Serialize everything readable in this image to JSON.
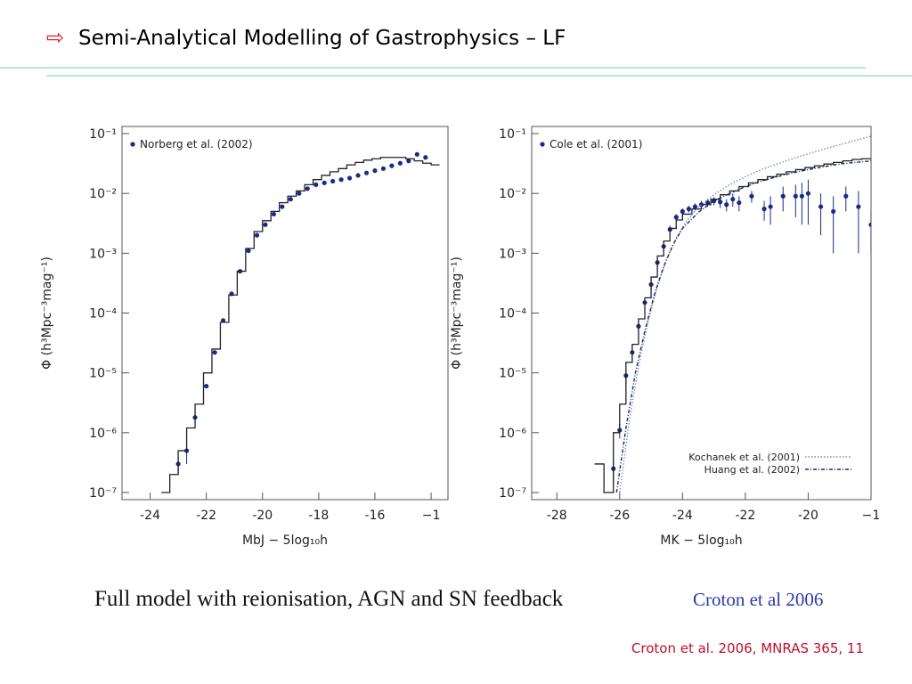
{
  "title": "Semi-Analytical Modelling of Gastrophysics – LF",
  "caption": "Full model with reionisation, AGN and SN feedback",
  "caption_ref": "Croton et al 2006",
  "footer": "Croton et al. 2006, MNRAS 365, 11",
  "chart_data": [
    {
      "type": "line",
      "ylog": true,
      "xlabel": "MbJ − 5log₁₀h",
      "ylabel": "Φ (h³Mpc⁻³mag⁻¹)",
      "xlim": [
        -25,
        -13.4
      ],
      "ylim": [
        1e-07,
        0.1
      ],
      "xticks": [
        -24,
        -22,
        -20,
        -18,
        -16,
        {
          "value": -14,
          "label": "−1"
        }
      ],
      "yticks": [
        {
          "value": 1e-07,
          "label": "10⁻⁷"
        },
        {
          "value": 1e-06,
          "label": "10⁻⁶"
        },
        {
          "value": 1e-05,
          "label": "10⁻⁵"
        },
        {
          "value": 0.0001,
          "label": "10⁻⁴"
        },
        {
          "value": 0.001,
          "label": "10⁻³"
        },
        {
          "value": 0.01,
          "label": "10⁻²"
        },
        {
          "value": 0.1,
          "label": "10⁻¹"
        }
      ],
      "series": [
        {
          "name": "Norberg et al. (2002)",
          "style": "points",
          "color": "#1a2a8a",
          "legend": "upper left",
          "x": [
            -23.0,
            -22.7,
            -22.4,
            -22.0,
            -21.7,
            -21.4,
            -21.1,
            -20.8,
            -20.5,
            -20.2,
            -19.9,
            -19.6,
            -19.3,
            -19.0,
            -18.7,
            -18.4,
            -18.1,
            -17.8,
            -17.5,
            -17.2,
            -16.9,
            -16.6,
            -16.3,
            -16.0,
            -15.7,
            -15.4,
            -15.1,
            -14.8,
            -14.5,
            -14.2
          ],
          "values": [
            3e-07,
            5e-07,
            1.8e-06,
            6e-06,
            2.2e-05,
            7.5e-05,
            0.00021,
            0.0005,
            0.0011,
            0.002,
            0.003,
            0.0045,
            0.006,
            0.008,
            0.01,
            0.012,
            0.014,
            0.015,
            0.016,
            0.017,
            0.018,
            0.02,
            0.022,
            0.024,
            0.026,
            0.029,
            0.032,
            0.035,
            0.045,
            0.04
          ],
          "errors": [
            1e-07,
            2e-07,
            4e-07,
            0,
            0,
            0,
            0,
            0,
            0,
            0,
            0,
            0,
            0,
            0,
            0,
            0,
            0,
            0,
            0,
            0,
            0,
            0,
            0,
            0,
            0,
            0,
            0,
            0,
            0,
            0
          ]
        },
        {
          "style": "step",
          "color": "#222222",
          "x": [
            -23.6,
            -23.3,
            -23.0,
            -22.7,
            -22.4,
            -22.1,
            -21.8,
            -21.5,
            -21.2,
            -20.9,
            -20.6,
            -20.3,
            -20.0,
            -19.7,
            -19.4,
            -19.1,
            -18.8,
            -18.5,
            -18.2,
            -17.9,
            -17.6,
            -17.3,
            -17.0,
            -16.7,
            -16.4,
            -16.1,
            -15.8,
            -15.5,
            -15.2,
            -14.9,
            -14.6,
            -14.3,
            -14.0
          ],
          "values": [
            1e-07,
            2e-07,
            5e-07,
            1.2e-06,
            3e-06,
            1e-05,
            2.5e-05,
            7e-05,
            0.0002,
            0.0005,
            0.0012,
            0.0023,
            0.0035,
            0.005,
            0.007,
            0.009,
            0.011,
            0.014,
            0.017,
            0.02,
            0.023,
            0.026,
            0.03,
            0.033,
            0.036,
            0.038,
            0.04,
            0.04,
            0.04,
            0.038,
            0.035,
            0.032,
            0.03
          ]
        }
      ]
    },
    {
      "type": "line",
      "ylog": true,
      "xlabel": "MK − 5log₁₀h",
      "ylabel": "Φ (h³Mpc⁻³mag⁻¹)",
      "xlim": [
        -28.8,
        -18
      ],
      "ylim": [
        1e-07,
        0.1
      ],
      "xticks": [
        -28,
        -26,
        -24,
        -22,
        -20,
        {
          "value": -18,
          "label": "−1"
        }
      ],
      "yticks": [
        {
          "value": 1e-07,
          "label": "10⁻⁷"
        },
        {
          "value": 1e-06,
          "label": "10⁻⁶"
        },
        {
          "value": 1e-05,
          "label": "10⁻⁵"
        },
        {
          "value": 0.0001,
          "label": "10⁻⁴"
        },
        {
          "value": 0.001,
          "label": "10⁻³"
        },
        {
          "value": 0.01,
          "label": "10⁻²"
        },
        {
          "value": 0.1,
          "label": "10⁻¹"
        }
      ],
      "series": [
        {
          "name": "Cole et al. (2001)",
          "style": "points",
          "color": "#1a2a8a",
          "legend": "upper left",
          "x": [
            -26.2,
            -26.0,
            -25.8,
            -25.6,
            -25.4,
            -25.2,
            -25.0,
            -24.8,
            -24.6,
            -24.4,
            -24.2,
            -24.0,
            -23.8,
            -23.6,
            -23.4,
            -23.2,
            -23.0,
            -22.8,
            -22.6,
            -22.4,
            -22.2,
            -21.8,
            -21.4,
            -21.2,
            -20.8,
            -20.4,
            -20.2,
            -20.0,
            -19.6,
            -19.2,
            -18.8,
            -18.4,
            -18.0
          ],
          "values": [
            2.5e-07,
            1.1e-06,
            9e-06,
            2.2e-05,
            6e-05,
            0.00015,
            0.0003,
            0.0007,
            0.0013,
            0.0025,
            0.004,
            0.005,
            0.0055,
            0.006,
            0.0065,
            0.007,
            0.0075,
            0.0072,
            0.0065,
            0.008,
            0.007,
            0.009,
            0.0055,
            0.006,
            0.009,
            0.009,
            0.009,
            0.01,
            0.006,
            0.005,
            0.009,
            0.006,
            0.003
          ],
          "errors": [
            1e-07,
            3e-07,
            3e-06,
            6e-06,
            1.5e-05,
            3e-05,
            6e-05,
            0.00012,
            0.0002,
            0.0004,
            0.0005,
            0.0006,
            0.0007,
            0.0008,
            0.001,
            0.001,
            0.0012,
            0.0015,
            0.0015,
            0.002,
            0.002,
            0.002,
            0.002,
            0.003,
            0.004,
            0.005,
            0.006,
            0.007,
            0.004,
            0.004,
            0.004,
            0.005,
            0.002
          ]
        },
        {
          "style": "step",
          "color": "#222222",
          "x": [
            -26.8,
            -26.5,
            -26.2,
            -26.0,
            -25.8,
            -25.6,
            -25.4,
            -25.2,
            -25.0,
            -24.8,
            -24.6,
            -24.4,
            -24.2,
            -24.0,
            -23.7,
            -23.4,
            -23.1,
            -22.8,
            -22.5,
            -22.2,
            -21.9,
            -21.6,
            -21.3,
            -21.0,
            -20.7,
            -20.4,
            -20.1,
            -19.8,
            -19.5,
            -19.2,
            -18.9,
            -18.6,
            -18.3
          ],
          "values": [
            3e-07,
            1e-07,
            1e-06,
            3e-06,
            1.5e-05,
            3e-05,
            8e-05,
            0.00018,
            0.0004,
            0.0009,
            0.0016,
            0.0026,
            0.0036,
            0.0045,
            0.0055,
            0.0065,
            0.008,
            0.0095,
            0.011,
            0.013,
            0.015,
            0.017,
            0.019,
            0.021,
            0.023,
            0.025,
            0.027,
            0.029,
            0.031,
            0.033,
            0.035,
            0.037,
            0.038
          ]
        },
        {
          "name": "Kochanek et al. (2001)",
          "style": "dotted",
          "color": "#7a8cc0",
          "legend": "lower right",
          "x": [
            -26.0,
            -25.7,
            -25.4,
            -25.1,
            -24.8,
            -24.5,
            -24.2,
            -23.9,
            -23.5,
            -23.0,
            -22.5,
            -22.0,
            -21.5,
            -21.0,
            -20.5,
            -20.0,
            -19.5,
            -19.0,
            -18.5,
            -18.0
          ],
          "values": [
            1e-07,
            1.5e-06,
            1.3e-05,
            7e-05,
            0.00028,
            0.0008,
            0.0018,
            0.0033,
            0.0058,
            0.0095,
            0.014,
            0.019,
            0.025,
            0.031,
            0.038,
            0.046,
            0.055,
            0.065,
            0.077,
            0.09
          ]
        },
        {
          "name": "Huang et al. (2002)",
          "style": "dashdot",
          "color": "#1a2a6a",
          "legend": "lower right",
          "x": [
            -26.1,
            -25.8,
            -25.5,
            -25.2,
            -24.9,
            -24.6,
            -24.3,
            -24.0,
            -23.5,
            -23.0,
            -22.5,
            -22.0,
            -21.5,
            -21.0,
            -20.5,
            -20.0,
            -19.5,
            -19.0,
            -18.5,
            -18.0
          ],
          "values": [
            1e-07,
            1.2e-06,
            1e-05,
            5e-05,
            0.0002,
            0.0006,
            0.0014,
            0.0026,
            0.0048,
            0.0075,
            0.01,
            0.013,
            0.016,
            0.019,
            0.022,
            0.025,
            0.028,
            0.031,
            0.033,
            0.035
          ]
        }
      ]
    }
  ]
}
